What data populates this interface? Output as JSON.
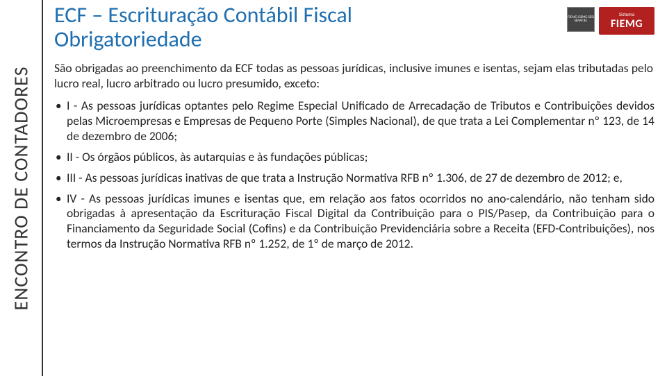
{
  "sidebar": {
    "label": "ENCONTRO DE CONTADORES"
  },
  "logos": {
    "small_lines": "FIEMG CIEMG SESI SENAI IEL",
    "big_top": "Sistema",
    "big_main": "FIEMG"
  },
  "title": {
    "line1": "ECF – Escrituração Contábil Fiscal",
    "line2": "Obrigatoriedade"
  },
  "intro": "São obrigadas ao preenchimento da ECF todas as pessoas jurídicas, inclusive imunes e isentas, sejam elas tributadas pelo lucro real, lucro arbitrado ou lucro presumido, exceto:",
  "items": [
    "I - As pessoas jurídicas optantes pelo Regime Especial Unificado de Arrecadação de Tributos e Contribuições devidos pelas Microempresas e Empresas de Pequeno Porte (Simples Nacional), de que trata a Lei Complementar nº 123, de 14 de dezembro de 2006;",
    "II - Os órgãos públicos, às autarquias e às fundações públicas;",
    "III - As pessoas jurídicas inativas de que trata a Instrução Normativa RFB nº 1.306, de 27 de dezembro de 2012; e,",
    "IV - As pessoas jurídicas imunes e isentas que, em relação aos fatos ocorridos no ano-calendário, não tenham sido obrigadas à apresentação da Escrituração Fiscal Digital da Contribuição para o PIS/Pasep, da Contribuição para o Financiamento da Seguridade Social (Cofins) e da Contribuição Previdenciária sobre a Receita (EFD-Contribuições), nos termos da Instrução Normativa RFB nº 1.252, de 1º de março de 2012."
  ]
}
